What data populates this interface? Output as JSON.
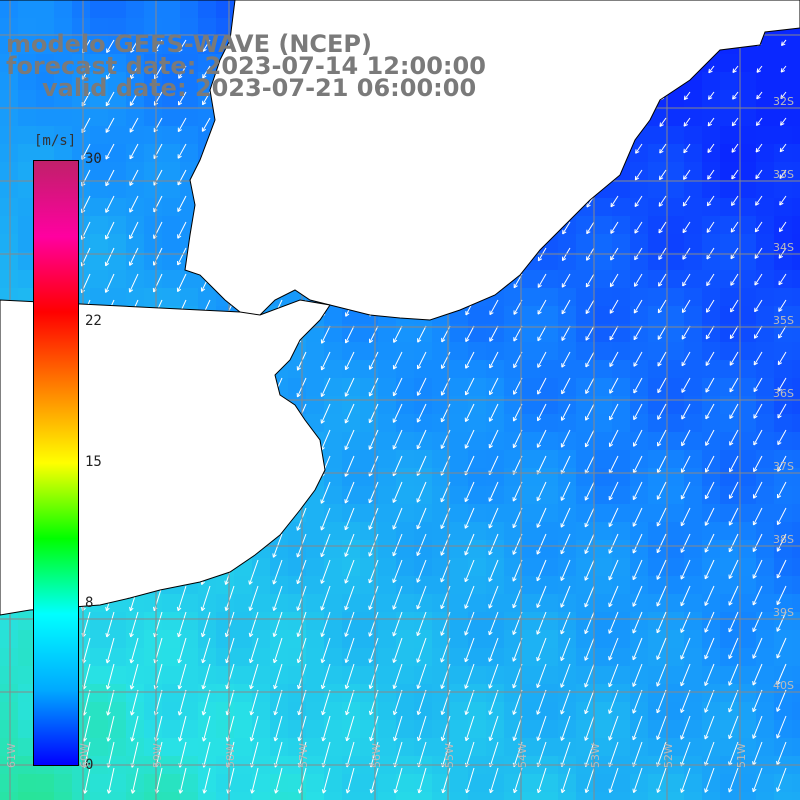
{
  "title": {
    "line1": "modelo GEFS-WAVE (NCEP)",
    "line2": "forecast date: 2023-07-14 12:00:00",
    "line3": "valid date: 2023-07-21 06:00:00"
  },
  "colorbar": {
    "units": "[m/s]",
    "ticks": [
      "30",
      "22",
      "15",
      "8",
      "0"
    ],
    "tick_values": [
      30,
      22,
      15,
      8,
      0
    ],
    "colors": [
      "#0000ff",
      "#00aaff",
      "#00ffff",
      "#00ff00",
      "#ffff00",
      "#ff8000",
      "#ff0000",
      "#ff00a0",
      "#c0206a"
    ]
  },
  "lat_labels": [
    "32S",
    "33S",
    "34S",
    "35S",
    "36S",
    "37S",
    "38S",
    "39S",
    "40S"
  ],
  "lon_labels": [
    "61W",
    "60W",
    "59W",
    "58W",
    "57W",
    "56W",
    "55W",
    "54W",
    "53W",
    "52W",
    "51W"
  ],
  "field": {
    "variable": "wind speed",
    "ocean_color_low": "#0a3dff",
    "ocean_color_mid": "#1aa0ff",
    "ocean_color_high": "#2ef0c0",
    "land_color": "#ffffff",
    "arrow_color": "#ffffff",
    "grid_color": "#888888"
  }
}
